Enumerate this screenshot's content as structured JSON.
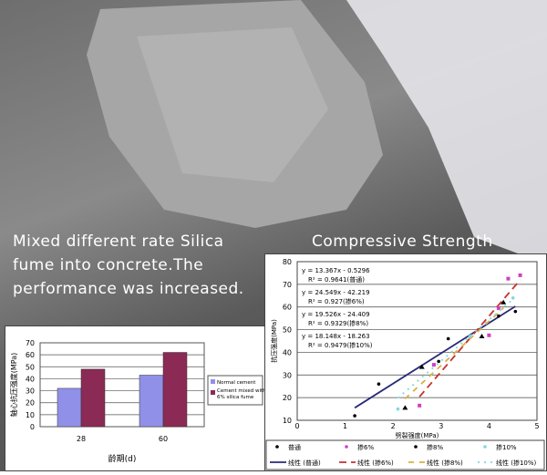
{
  "caption_left": [
    "Mixed different rate Silica",
    "fume into concrete.The",
    "performance was increased."
  ],
  "caption_right": "Compressive Strength",
  "chart_data": [
    {
      "type": "bar",
      "categories": [
        "28",
        "60"
      ],
      "series": [
        {
          "name": "Normal cement",
          "values": [
            32,
            43
          ],
          "color": "#9090e8"
        },
        {
          "name": "Cement mixed with 6% silica fume",
          "values": [
            48,
            62
          ],
          "color": "#8b2a55"
        }
      ],
      "xlabel": "龄期(d)",
      "ylabel": "轴心抗压强度(MPa)",
      "ylim": [
        0,
        70
      ],
      "yticks": [
        0,
        10,
        20,
        30,
        40,
        50,
        60,
        70
      ],
      "grid": true,
      "legend": "right"
    },
    {
      "type": "scatter",
      "xlabel": "劈裂强度(MPa)",
      "ylabel": "抗压强度(MPa)",
      "xlim": [
        0,
        5
      ],
      "ylim": [
        10,
        80
      ],
      "xticks": [
        0,
        1,
        2,
        3,
        4,
        5
      ],
      "yticks": [
        10,
        20,
        30,
        40,
        50,
        60,
        70,
        80
      ],
      "grid": true,
      "legend": "bottom",
      "series": [
        {
          "name": "普通",
          "marker": "dot",
          "color": "#000000",
          "points": [
            [
              1.2,
              12
            ],
            [
              1.7,
              26
            ],
            [
              2.95,
              36
            ],
            [
              3.15,
              46
            ],
            [
              4.2,
              56
            ],
            [
              4.55,
              58
            ]
          ],
          "fit": {
            "name": "线性 (普通)",
            "slope": 13.367,
            "intercept": -0.5296,
            "range": [
              1.2,
              4.55
            ],
            "color": "#2a2a7a",
            "dash": "",
            "eq": "y = 13.367x - 0.5296",
            "r2": "R² = 0.9641(普通)"
          }
        },
        {
          "name": "掺6%",
          "marker": "square",
          "color": "#d040c0",
          "points": [
            [
              2.55,
              16.5
            ],
            [
              2.85,
              34.5
            ],
            [
              4.0,
              47.5
            ],
            [
              4.2,
              59.5
            ],
            [
              4.4,
              72.5
            ],
            [
              4.65,
              74
            ]
          ],
          "fit": {
            "name": "线性 (掺6%)",
            "slope": 24.549,
            "intercept": -42.219,
            "range": [
              2.55,
              4.65
            ],
            "color": "#c83030",
            "dash": "8,5",
            "eq": "y = 24.549x - 42.219",
            "r2": "R² = 0.927(掺6%)"
          }
        },
        {
          "name": "掺8%",
          "marker": "triangle",
          "color": "#000000",
          "points": [
            [
              2.25,
              15.5
            ],
            [
              2.6,
              33.5
            ],
            [
              3.85,
              47
            ],
            [
              4.3,
              62
            ]
          ],
          "fit": {
            "name": "线性 (掺8%)",
            "slope": 19.526,
            "intercept": -24.409,
            "range": [
              2.25,
              4.3
            ],
            "color": "#d8b040",
            "dash": "6,6",
            "eq": "y = 19.526x - 24.409",
            "r2": "R² = 0.9329(掺8%)"
          }
        },
        {
          "name": "掺10%",
          "marker": "x",
          "color": "#80d8e0",
          "points": [
            [
              2.1,
              15
            ],
            [
              3.6,
              47
            ],
            [
              4.5,
              64
            ]
          ],
          "fit": {
            "name": "线性 (掺10%)",
            "slope": 18.148,
            "intercept": -18.263,
            "range": [
              2.1,
              4.5
            ],
            "color": "#80d8e0",
            "dash": "2,5",
            "eq": "y = 18.148x - 18.263",
            "r2": "R² = 0.9479(掺10%)"
          }
        }
      ]
    }
  ]
}
